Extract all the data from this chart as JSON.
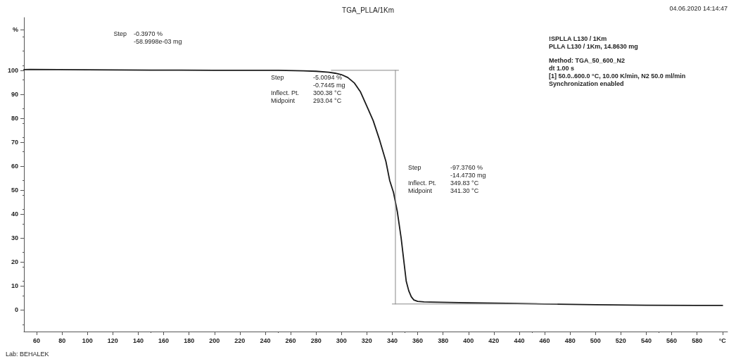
{
  "chart_data": {
    "type": "line",
    "title": "TGA_PLLA/1Km",
    "xlim": [
      50,
      604
    ],
    "xticks": [
      60,
      80,
      100,
      120,
      140,
      160,
      180,
      200,
      220,
      240,
      260,
      280,
      300,
      320,
      340,
      360,
      380,
      400,
      420,
      440,
      460,
      480,
      500,
      520,
      540,
      560,
      580,
      {
        "value": 600,
        "label": "°C"
      }
    ],
    "ylim": [
      -9,
      122
    ],
    "yticks": [
      0,
      10,
      20,
      30,
      40,
      50,
      60,
      70,
      80,
      90,
      100,
      {
        "value": 117,
        "label": "%"
      }
    ],
    "grid": false,
    "marker": "none",
    "series": [
      {
        "color": "#1a1a1a",
        "x": [
          50,
          55,
          100,
          150,
          200,
          250,
          270,
          280,
          290,
          295,
          300,
          305,
          310,
          315,
          320,
          325,
          330,
          335,
          338,
          341,
          344,
          347,
          349,
          351,
          353,
          355,
          357,
          360,
          365,
          370,
          400,
          430,
          460,
          500,
          540,
          580,
          600
        ],
        "values": [
          100.3,
          100.4,
          100.2,
          100.1,
          100,
          100,
          99.8,
          99.6,
          99.2,
          98.8,
          98.2,
          97,
          94.8,
          91,
          85,
          79,
          71,
          62,
          54,
          49,
          41,
          30,
          21,
          12,
          8,
          5.5,
          4.2,
          3.6,
          3.4,
          3.3,
          3.0,
          2.8,
          2.5,
          2.2,
          2.0,
          1.9,
          1.9
        ]
      },
      {
        "color": "#888888",
        "x": [
          292,
          345
        ],
        "values": [
          100,
          100
        ]
      },
      {
        "color": "#888888",
        "x": [
          342.5,
          342.5
        ],
        "values": [
          100,
          2.5
        ]
      },
      {
        "color": "#888888",
        "x": [
          340,
          470
        ],
        "values": [
          2.5,
          2.5
        ]
      }
    ],
    "annotations": [
      "04.06.2020 14:14:47",
      "Step",
      "-0.3970 %\n-58.9998e-03 mg",
      "Step\n\nInflect. Pt.\nMidpoint",
      "-5.0094 %\n-0.7445 mg\n300.38 °C\n293.04 °C",
      "Step\n\nInflect. Pt.\nMidpoint",
      "-97.3760 %\n-14.4730 mg\n349.83 °C\n341.30 °C",
      "!SPLLA L130 / 1Km\nPLLA L130 / 1Km, 14.8630 mg",
      "Method: TGA_50_600_N2\ndt 1.00 s\n[1] 50.0..600.0 °C, 10.00 K/min, N2 50.0 ml/min\nSynchronization enabled",
      "Lab: BEHALEK"
    ]
  }
}
